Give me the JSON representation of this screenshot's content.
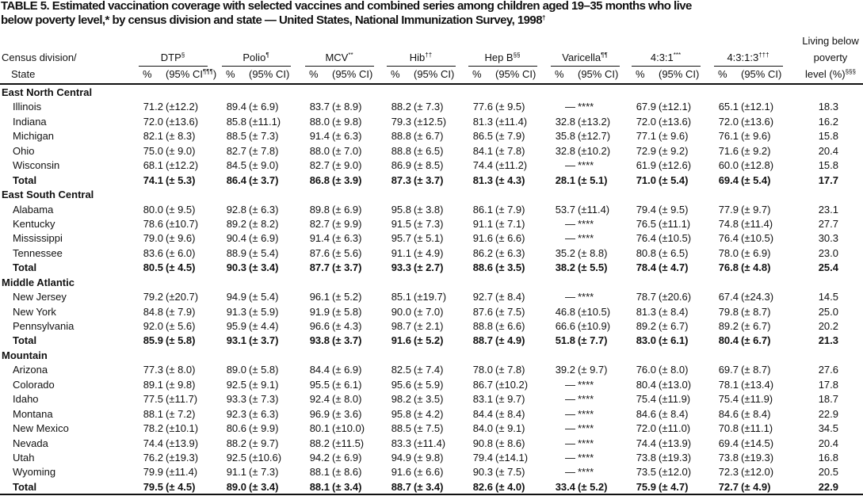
{
  "header": {
    "title_lines": [
      "TABLE 5. Estimated vaccination coverage with selected vaccines and combined series among children aged 19–35 months who live",
      "below poverty level,* by census division and state — United States, National Immunization Survey, 1998"
    ],
    "title_note": "†"
  },
  "table": {
    "stub_header": [
      "Census division/",
      "State"
    ],
    "groups": [
      {
        "label": "DTP",
        "note": "§",
        "pct": "%",
        "ci": "(95% CI",
        "ci_note": "¶¶¶",
        "ci_close": ")"
      },
      {
        "label": "Polio",
        "note": "¶",
        "pct": "%",
        "ci": "(95% CI)"
      },
      {
        "label": "MCV",
        "note": "**",
        "pct": "%",
        "ci": "(95% CI)"
      },
      {
        "label": "Hib",
        "note": "††",
        "pct": "%",
        "ci": "(95% CI)"
      },
      {
        "label": "Hep B",
        "note": "§§",
        "pct": "%",
        "ci": "(95% CI)"
      },
      {
        "label": "Varicella",
        "note": "¶¶",
        "pct": "%",
        "ci": "(95% CI)"
      },
      {
        "label": "4:3:1",
        "note": "***",
        "pct": "%",
        "ci": "(95% CI)"
      },
      {
        "label": "4:3:1:3",
        "note": "†††",
        "pct": "%",
        "ci": "(95% CI)"
      }
    ],
    "poverty_header": {
      "lines": [
        "Living below",
        "poverty",
        "level (%)"
      ],
      "note": "§§§"
    },
    "sections": [
      {
        "name": "East North Central",
        "rows": [
          {
            "state": "Illinois",
            "cells": [
              "71.2",
              "(±12.2)",
              "89.4",
              "(± 6.9)",
              "83.7",
              "(± 8.9)",
              "88.2",
              "(± 7.3)",
              "77.6",
              "(± 9.5)",
              "—",
              "****",
              "67.9",
              "(±12.1)",
              "65.1",
              "(±12.1)",
              "18.3"
            ]
          },
          {
            "state": "Indiana",
            "cells": [
              "72.0",
              "(±13.6)",
              "85.8",
              "(±11.1)",
              "88.0",
              "(± 9.8)",
              "79.3",
              "(±12.5)",
              "81.3",
              "(±11.4)",
              "32.8",
              "(±13.2)",
              "72.0",
              "(±13.6)",
              "72.0",
              "(±13.6)",
              "16.2"
            ]
          },
          {
            "state": "Michigan",
            "cells": [
              "82.1",
              "(± 8.3)",
              "88.5",
              "(± 7.3)",
              "91.4",
              "(± 6.3)",
              "88.8",
              "(± 6.7)",
              "86.5",
              "(± 7.9)",
              "35.8",
              "(±12.7)",
              "77.1",
              "(± 9.6)",
              "76.1",
              "(± 9.6)",
              "15.8"
            ]
          },
          {
            "state": "Ohio",
            "cells": [
              "75.0",
              "(± 9.0)",
              "82.7",
              "(± 7.8)",
              "88.0",
              "(± 7.0)",
              "88.8",
              "(± 6.5)",
              "84.1",
              "(± 7.8)",
              "32.8",
              "(±10.2)",
              "72.9",
              "(± 9.2)",
              "71.6",
              "(± 9.2)",
              "20.4"
            ]
          },
          {
            "state": "Wisconsin",
            "cells": [
              "68.1",
              "(±12.2)",
              "84.5",
              "(± 9.0)",
              "82.7",
              "(± 9.0)",
              "86.9",
              "(± 8.5)",
              "74.4",
              "(±11.2)",
              "—",
              "****",
              "61.9",
              "(±12.6)",
              "60.0",
              "(±12.8)",
              "15.8"
            ]
          }
        ],
        "total": {
          "label": "Total",
          "cells": [
            "74.1",
            "(± 5.3)",
            "86.4",
            "(± 3.7)",
            "86.8",
            "(± 3.9)",
            "87.3",
            "(± 3.7)",
            "81.3",
            "(± 4.3)",
            "28.1",
            "(± 5.1)",
            "71.0",
            "(± 5.4)",
            "69.4",
            "(± 5.4)",
            "17.7"
          ]
        }
      },
      {
        "name": "East South Central",
        "rows": [
          {
            "state": "Alabama",
            "cells": [
              "80.0",
              "(± 9.5)",
              "92.8",
              "(± 6.3)",
              "89.8",
              "(± 6.9)",
              "95.8",
              "(± 3.8)",
              "86.1",
              "(± 7.9)",
              "53.7",
              "(±11.4)",
              "79.4",
              "(± 9.5)",
              "77.9",
              "(± 9.7)",
              "23.1"
            ]
          },
          {
            "state": "Kentucky",
            "cells": [
              "78.6",
              "(±10.7)",
              "89.2",
              "(± 8.2)",
              "82.7",
              "(± 9.9)",
              "91.5",
              "(± 7.3)",
              "91.1",
              "(± 7.1)",
              "—",
              "****",
              "76.5",
              "(±11.1)",
              "74.8",
              "(±11.4)",
              "27.7"
            ]
          },
          {
            "state": "Mississippi",
            "cells": [
              "79.0",
              "(± 9.6)",
              "90.4",
              "(± 6.9)",
              "91.4",
              "(± 6.3)",
              "95.7",
              "(± 5.1)",
              "91.6",
              "(± 6.6)",
              "—",
              "****",
              "76.4",
              "(±10.5)",
              "76.4",
              "(±10.5)",
              "30.3"
            ]
          },
          {
            "state": "Tennessee",
            "cells": [
              "83.6",
              "(± 6.0)",
              "88.9",
              "(± 5.4)",
              "87.6",
              "(± 5.6)",
              "91.1",
              "(± 4.9)",
              "86.2",
              "(± 6.3)",
              "35.2",
              "(± 8.8)",
              "80.8",
              "(± 6.5)",
              "78.0",
              "(± 6.9)",
              "23.0"
            ]
          }
        ],
        "total": {
          "label": "Total",
          "cells": [
            "80.5",
            "(± 4.5)",
            "90.3",
            "(± 3.4)",
            "87.7",
            "(± 3.7)",
            "93.3",
            "(± 2.7)",
            "88.6",
            "(± 3.5)",
            "38.2",
            "(± 5.5)",
            "78.4",
            "(± 4.7)",
            "76.8",
            "(± 4.8)",
            "25.4"
          ]
        }
      },
      {
        "name": "Middle Atlantic",
        "rows": [
          {
            "state": "New Jersey",
            "cells": [
              "79.2",
              "(±20.7)",
              "94.9",
              "(± 5.4)",
              "96.1",
              "(± 5.2)",
              "85.1",
              "(±19.7)",
              "92.7",
              "(± 8.4)",
              "—",
              "****",
              "78.7",
              "(±20.6)",
              "67.4",
              "(±24.3)",
              "14.5"
            ]
          },
          {
            "state": "New York",
            "cells": [
              "84.8",
              "(± 7.9)",
              "91.3",
              "(± 5.9)",
              "91.9",
              "(± 5.8)",
              "90.0",
              "(± 7.0)",
              "87.6",
              "(± 7.5)",
              "46.8",
              "(±10.5)",
              "81.3",
              "(± 8.4)",
              "79.8",
              "(± 8.7)",
              "25.0"
            ]
          },
          {
            "state": "Pennsylvania",
            "cells": [
              "92.0",
              "(± 5.6)",
              "95.9",
              "(± 4.4)",
              "96.6",
              "(± 4.3)",
              "98.7",
              "(± 2.1)",
              "88.8",
              "(± 6.6)",
              "66.6",
              "(±10.9)",
              "89.2",
              "(± 6.7)",
              "89.2",
              "(± 6.7)",
              "20.2"
            ]
          }
        ],
        "total": {
          "label": "Total",
          "cells": [
            "85.9",
            "(± 5.8)",
            "93.1",
            "(± 3.7)",
            "93.8",
            "(± 3.7)",
            "91.6",
            "(± 5.2)",
            "88.7",
            "(± 4.9)",
            "51.8",
            "(± 7.7)",
            "83.0",
            "(± 6.1)",
            "80.4",
            "(± 6.7)",
            "21.3"
          ]
        }
      },
      {
        "name": "Mountain",
        "rows": [
          {
            "state": "Arizona",
            "cells": [
              "77.3",
              "(± 8.0)",
              "89.0",
              "(± 5.8)",
              "84.4",
              "(± 6.9)",
              "82.5",
              "(± 7.4)",
              "78.0",
              "(± 7.8)",
              "39.2",
              "(± 9.7)",
              "76.0",
              "(± 8.0)",
              "69.7",
              "(± 8.7)",
              "27.6"
            ]
          },
          {
            "state": "Colorado",
            "cells": [
              "89.1",
              "(± 9.8)",
              "92.5",
              "(± 9.1)",
              "95.5",
              "(± 6.1)",
              "95.6",
              "(± 5.9)",
              "86.7",
              "(±10.2)",
              "—",
              "****",
              "80.4",
              "(±13.0)",
              "78.1",
              "(±13.4)",
              "17.8"
            ]
          },
          {
            "state": "Idaho",
            "cells": [
              "77.5",
              "(±11.7)",
              "93.3",
              "(± 7.3)",
              "92.4",
              "(± 8.0)",
              "98.2",
              "(± 3.5)",
              "83.1",
              "(± 9.7)",
              "—",
              "****",
              "75.4",
              "(±11.9)",
              "75.4",
              "(±11.9)",
              "18.7"
            ]
          },
          {
            "state": "Montana",
            "cells": [
              "88.1",
              "(± 7.2)",
              "92.3",
              "(± 6.3)",
              "96.9",
              "(± 3.6)",
              "95.8",
              "(± 4.2)",
              "84.4",
              "(± 8.4)",
              "—",
              "****",
              "84.6",
              "(± 8.4)",
              "84.6",
              "(± 8.4)",
              "22.9"
            ]
          },
          {
            "state": "New Mexico",
            "cells": [
              "78.2",
              "(±10.1)",
              "80.6",
              "(± 9.9)",
              "80.1",
              "(±10.0)",
              "88.5",
              "(± 7.5)",
              "84.0",
              "(± 9.1)",
              "—",
              "****",
              "72.0",
              "(±11.0)",
              "70.8",
              "(±11.1)",
              "34.5"
            ]
          },
          {
            "state": "Nevada",
            "cells": [
              "74.4",
              "(±13.9)",
              "88.2",
              "(± 9.7)",
              "88.2",
              "(±11.5)",
              "83.3",
              "(±11.4)",
              "90.8",
              "(± 8.6)",
              "—",
              "****",
              "74.4",
              "(±13.9)",
              "69.4",
              "(±14.5)",
              "20.4"
            ]
          },
          {
            "state": "Utah",
            "cells": [
              "76.2",
              "(±19.3)",
              "92.5",
              "(±10.6)",
              "94.2",
              "(± 6.9)",
              "94.9",
              "(± 9.8)",
              "79.4",
              "(±14.1)",
              "—",
              "****",
              "73.8",
              "(±19.3)",
              "73.8",
              "(±19.3)",
              "16.8"
            ]
          },
          {
            "state": "Wyoming",
            "cells": [
              "79.9",
              "(±11.4)",
              "91.1",
              "(± 7.3)",
              "88.1",
              "(± 8.6)",
              "91.6",
              "(± 6.6)",
              "90.3",
              "(± 7.5)",
              "—",
              "****",
              "73.5",
              "(±12.0)",
              "72.3",
              "(±12.0)",
              "20.5"
            ]
          }
        ],
        "total": {
          "label": "Total",
          "cells": [
            "79.5",
            "(± 4.5)",
            "89.0",
            "(± 3.4)",
            "88.1",
            "(± 3.4)",
            "88.7",
            "(± 3.4)",
            "82.6",
            "(± 4.0)",
            "33.4",
            "(± 5.2)",
            "75.9",
            "(± 4.7)",
            "72.7",
            "(± 4.9)",
            "22.9"
          ]
        }
      }
    ]
  }
}
